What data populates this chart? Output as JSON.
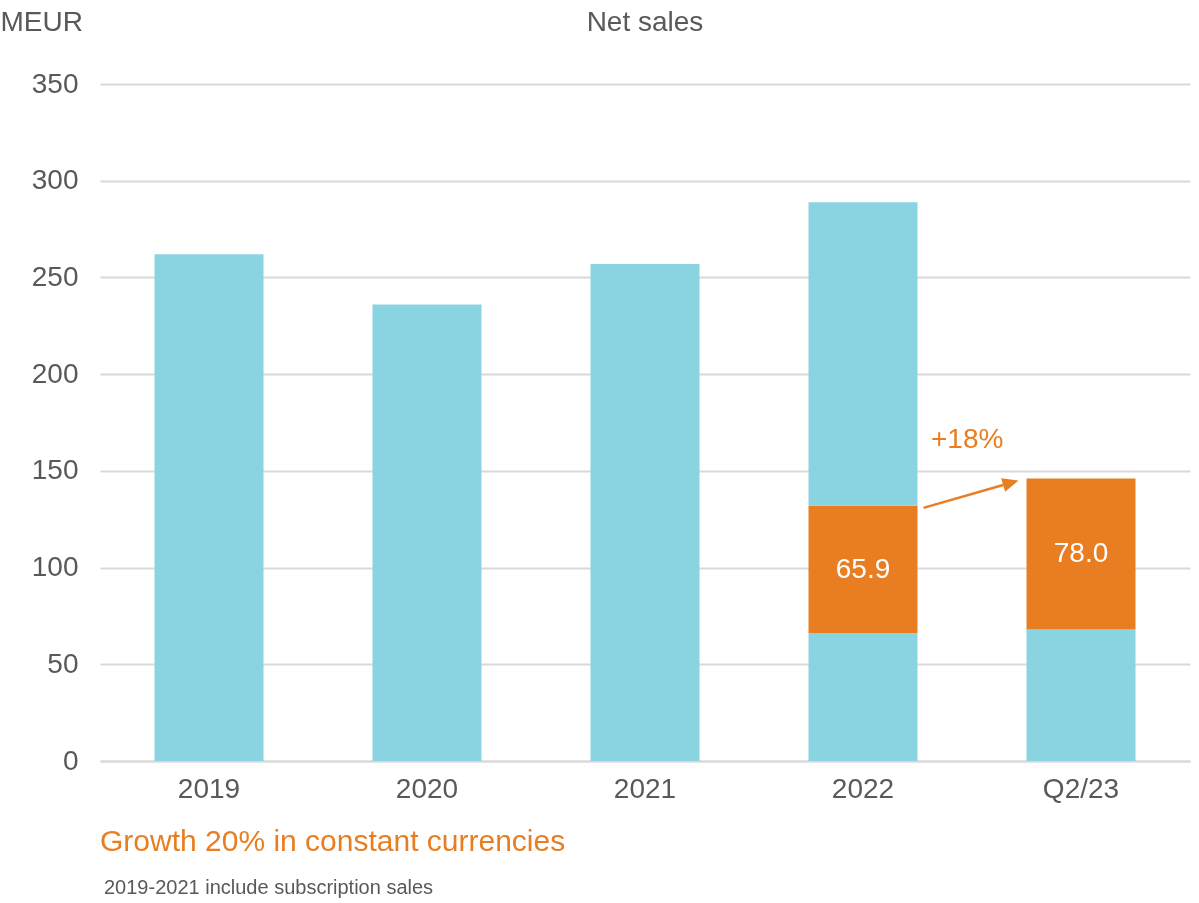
{
  "chart_data": {
    "type": "bar",
    "title": "Net sales",
    "ylabel": "MEUR",
    "categories": [
      "2019",
      "2020",
      "2021",
      "2022",
      "Q2/23"
    ],
    "stacked": true,
    "series": [
      {
        "color": "#8ad3e1",
        "values": [
          262,
          236,
          257,
          66,
          68
        ]
      },
      {
        "color": "#e87e21",
        "values": [
          null,
          null,
          null,
          65.9,
          78.0
        ],
        "value_labels": [
          null,
          null,
          null,
          "65.9",
          "78.0"
        ]
      },
      {
        "color": "#8ad3e1",
        "values": [
          null,
          null,
          null,
          157,
          null
        ]
      }
    ],
    "ylim": [
      0,
      350
    ],
    "yticks": [
      0,
      50,
      100,
      150,
      200,
      250,
      300,
      350
    ],
    "grid": "y",
    "legend": false,
    "annotations": [
      "+18%",
      "Growth 20% in constant currencies",
      "2019-2021 include subscription sales"
    ]
  }
}
